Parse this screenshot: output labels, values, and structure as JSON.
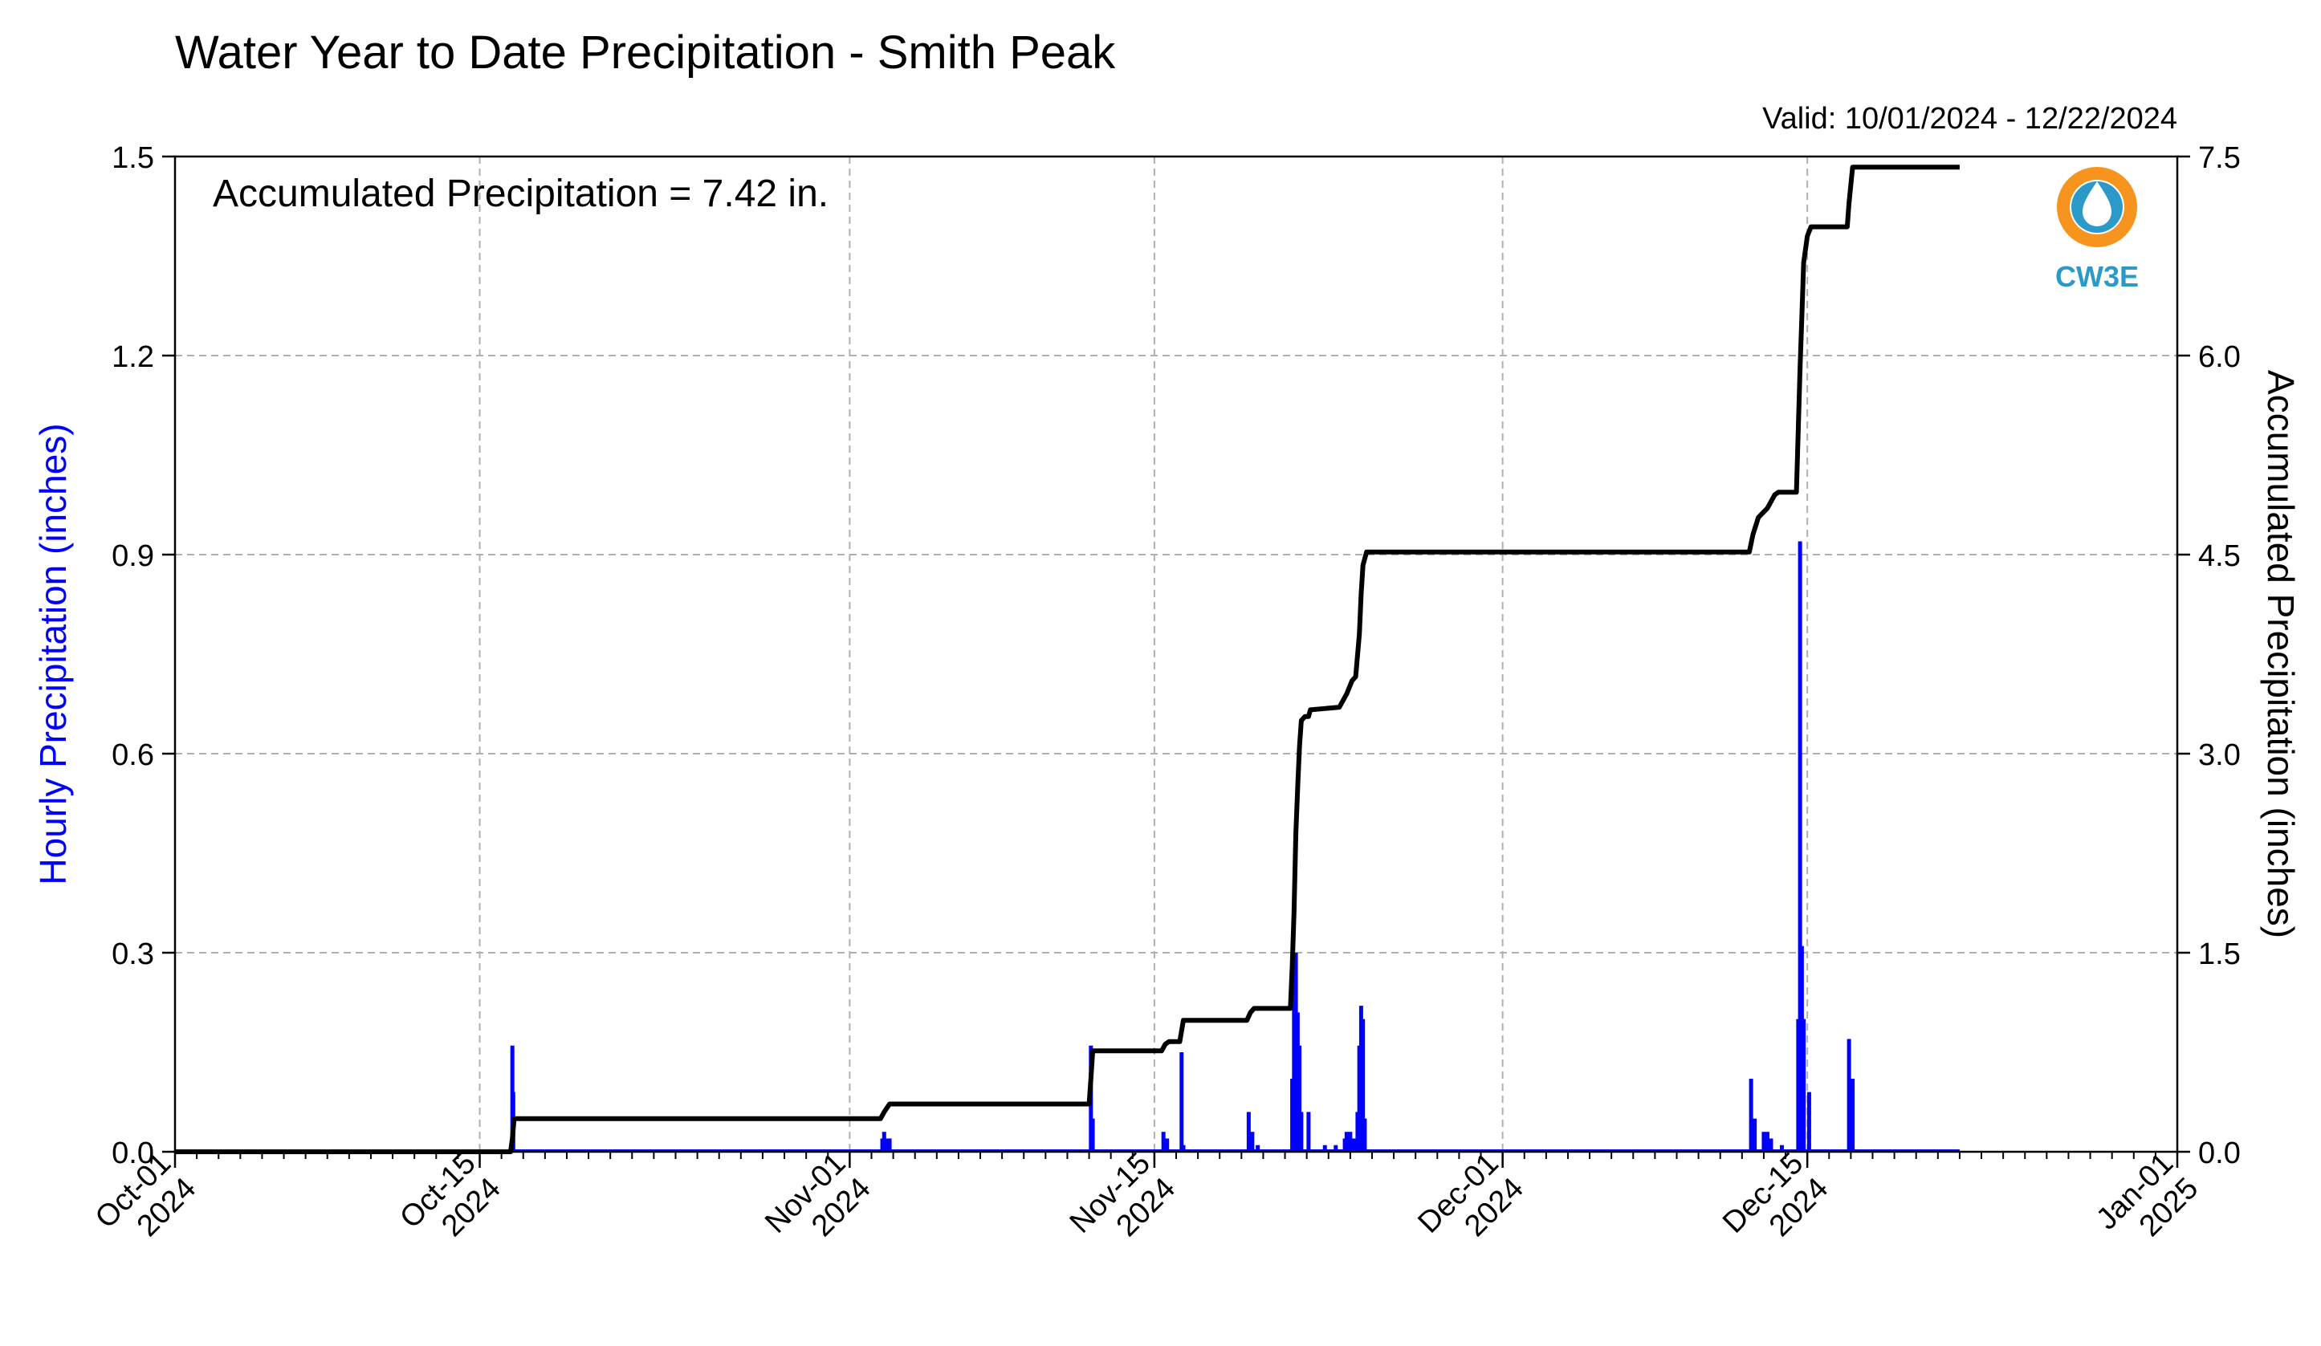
{
  "chart_data": {
    "type": "bar+line",
    "title": "Water Year to Date Precipitation - Smith Peak",
    "valid_text": "Valid: 10/01/2024 - 12/22/2024",
    "annotation": "Accumulated Precipitation = 7.42 in.",
    "logo_text": "CW3E",
    "xlim": [
      "2024-10-01",
      "2025-01-01"
    ],
    "x_ticks": [
      {
        "date": "2024-10-01",
        "label": [
          "Oct-01",
          "2024"
        ]
      },
      {
        "date": "2024-10-15",
        "label": [
          "Oct-15",
          "2024"
        ]
      },
      {
        "date": "2024-11-01",
        "label": [
          "Nov-01",
          "2024"
        ]
      },
      {
        "date": "2024-11-15",
        "label": [
          "Nov-15",
          "2024"
        ]
      },
      {
        "date": "2024-12-01",
        "label": [
          "Dec-01",
          "2024"
        ]
      },
      {
        "date": "2024-12-15",
        "label": [
          "Dec-15",
          "2024"
        ]
      },
      {
        "date": "2025-01-01",
        "label": [
          "Jan-01",
          "2025"
        ]
      }
    ],
    "y_left": {
      "label": "Hourly Precipitation (inches)",
      "lim": [
        0,
        1.5
      ],
      "ticks": [
        "0.0",
        "0.3",
        "0.6",
        "0.9",
        "1.2",
        "1.5"
      ]
    },
    "y_right": {
      "label": "Accumulated Precipitation (inches)",
      "lim": [
        0,
        7.5
      ],
      "ticks": [
        "0.0",
        "1.5",
        "3.0",
        "4.5",
        "6.0",
        "7.5"
      ]
    },
    "grid": true,
    "colors": {
      "hourly": "#0000ff",
      "accum": "#000000",
      "grid": "#b0b0b0",
      "logo_orange": "#f7941d",
      "logo_blue": "#2b9ac9"
    },
    "series": [
      {
        "name": "Hourly Precipitation",
        "type": "bar",
        "points": [
          [
            "2024-10-16T12:00",
            0.16
          ],
          [
            "2024-10-16T13:00",
            0.09
          ],
          [
            "2024-11-02T12:00",
            0.02
          ],
          [
            "2024-11-02T14:00",
            0.03
          ],
          [
            "2024-11-02T16:00",
            0.02
          ],
          [
            "2024-11-02T18:00",
            0.01
          ],
          [
            "2024-11-02T20:00",
            0.02
          ],
          [
            "2024-11-12T02:00",
            0.16
          ],
          [
            "2024-11-12T04:00",
            0.05
          ],
          [
            "2024-11-15T10:00",
            0.03
          ],
          [
            "2024-11-15T14:00",
            0.02
          ],
          [
            "2024-11-16T06:00",
            0.15
          ],
          [
            "2024-11-16T08:00",
            0.01
          ],
          [
            "2024-11-19T08:00",
            0.06
          ],
          [
            "2024-11-19T12:00",
            0.03
          ],
          [
            "2024-11-19T18:00",
            0.01
          ],
          [
            "2024-11-21T08:00",
            0.11
          ],
          [
            "2024-11-21T10:00",
            0.27
          ],
          [
            "2024-11-21T12:00",
            0.3
          ],
          [
            "2024-11-21T14:00",
            0.21
          ],
          [
            "2024-11-21T16:00",
            0.16
          ],
          [
            "2024-11-21T18:00",
            0.06
          ],
          [
            "2024-11-22T02:00",
            0.06
          ],
          [
            "2024-11-22T20:00",
            0.01
          ],
          [
            "2024-11-23T08:00",
            0.01
          ],
          [
            "2024-11-23T18:00",
            0.02
          ],
          [
            "2024-11-23T20:00",
            0.03
          ],
          [
            "2024-11-24T00:00",
            0.03
          ],
          [
            "2024-11-24T04:00",
            0.02
          ],
          [
            "2024-11-24T08:00",
            0.06
          ],
          [
            "2024-11-24T10:00",
            0.16
          ],
          [
            "2024-11-24T12:00",
            0.22
          ],
          [
            "2024-11-24T14:00",
            0.2
          ],
          [
            "2024-11-24T16:00",
            0.05
          ],
          [
            "2024-12-12T10:00",
            0.11
          ],
          [
            "2024-12-12T14:00",
            0.05
          ],
          [
            "2024-12-13T00:00",
            0.03
          ],
          [
            "2024-12-13T04:00",
            0.03
          ],
          [
            "2024-12-13T08:00",
            0.02
          ],
          [
            "2024-12-13T20:00",
            0.01
          ],
          [
            "2024-12-14T14:00",
            0.2
          ],
          [
            "2024-12-14T16:00",
            0.92
          ],
          [
            "2024-12-14T18:00",
            0.31
          ],
          [
            "2024-12-14T20:00",
            0.2
          ],
          [
            "2024-12-15T02:00",
            0.09
          ],
          [
            "2024-12-16T22:00",
            0.17
          ],
          [
            "2024-12-17T02:00",
            0.11
          ]
        ]
      },
      {
        "name": "Accumulated Precipitation",
        "type": "line",
        "points": [
          [
            "2024-10-01T00:00",
            0.0
          ],
          [
            "2024-10-16T10:00",
            0.0
          ],
          [
            "2024-10-16T12:00",
            0.1
          ],
          [
            "2024-10-16T14:00",
            0.25
          ],
          [
            "2024-11-02T10:00",
            0.25
          ],
          [
            "2024-11-02T14:00",
            0.3
          ],
          [
            "2024-11-02T20:00",
            0.36
          ],
          [
            "2024-11-12T00:00",
            0.36
          ],
          [
            "2024-11-12T02:00",
            0.55
          ],
          [
            "2024-11-12T04:00",
            0.76
          ],
          [
            "2024-11-15T08:00",
            0.76
          ],
          [
            "2024-11-15T12:00",
            0.81
          ],
          [
            "2024-11-15T16:00",
            0.83
          ],
          [
            "2024-11-16T04:00",
            0.83
          ],
          [
            "2024-11-16T08:00",
            0.99
          ],
          [
            "2024-11-19T06:00",
            0.99
          ],
          [
            "2024-11-19T10:00",
            1.05
          ],
          [
            "2024-11-19T14:00",
            1.08
          ],
          [
            "2024-11-21T06:00",
            1.08
          ],
          [
            "2024-11-21T08:00",
            1.4
          ],
          [
            "2024-11-21T10:00",
            1.8
          ],
          [
            "2024-11-21T12:00",
            2.4
          ],
          [
            "2024-11-21T14:00",
            2.75
          ],
          [
            "2024-11-21T16:00",
            3.05
          ],
          [
            "2024-11-21T18:00",
            3.25
          ],
          [
            "2024-11-21T22:00",
            3.28
          ],
          [
            "2024-11-22T02:00",
            3.28
          ],
          [
            "2024-11-22T04:00",
            3.33
          ],
          [
            "2024-11-23T12:00",
            3.35
          ],
          [
            "2024-11-23T20:00",
            3.45
          ],
          [
            "2024-11-24T02:00",
            3.55
          ],
          [
            "2024-11-24T06:00",
            3.58
          ],
          [
            "2024-11-24T10:00",
            3.9
          ],
          [
            "2024-11-24T12:00",
            4.2
          ],
          [
            "2024-11-24T14:00",
            4.42
          ],
          [
            "2024-11-24T18:00",
            4.52
          ],
          [
            "2024-12-12T08:00",
            4.52
          ],
          [
            "2024-12-12T12:00",
            4.65
          ],
          [
            "2024-12-12T18:00",
            4.78
          ],
          [
            "2024-12-13T04:00",
            4.85
          ],
          [
            "2024-12-13T12:00",
            4.95
          ],
          [
            "2024-12-13T16:00",
            4.97
          ],
          [
            "2024-12-14T12:00",
            4.97
          ],
          [
            "2024-12-14T16:00",
            5.9
          ],
          [
            "2024-12-14T18:00",
            6.3
          ],
          [
            "2024-12-14T20:00",
            6.7
          ],
          [
            "2024-12-15T00:00",
            6.9
          ],
          [
            "2024-12-15T04:00",
            6.97
          ],
          [
            "2024-12-16T20:00",
            6.97
          ],
          [
            "2024-12-16T22:00",
            7.15
          ],
          [
            "2024-12-17T02:00",
            7.42
          ],
          [
            "2024-12-22T00:00",
            7.42
          ]
        ]
      }
    ]
  }
}
